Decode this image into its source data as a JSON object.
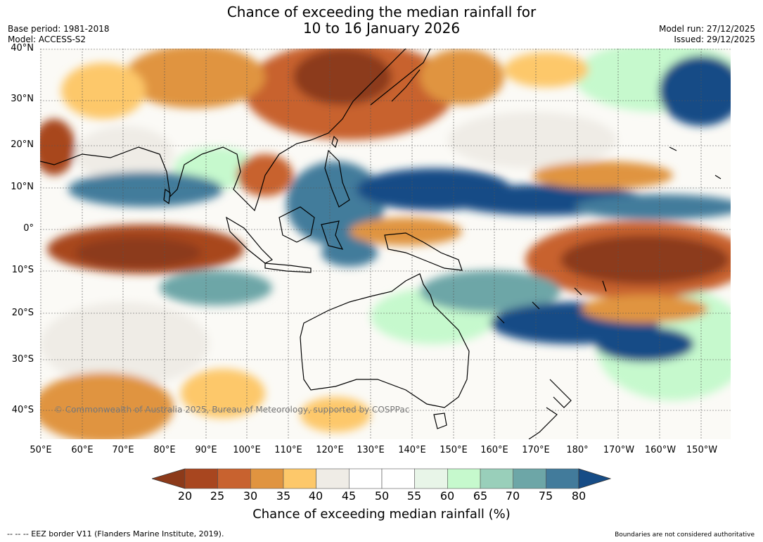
{
  "title": {
    "line1": "Chance of exceeding the median rainfall for",
    "line2": "10 to 16 January 2026"
  },
  "meta": {
    "base_period": "Base period: 1981-2018",
    "model": "Model: ACCESS-S2",
    "model_run": "Model run: 27/12/2025",
    "issued": "Issued: 29/12/2025"
  },
  "latitude_labels": [
    "40°N",
    "30°N",
    "20°N",
    "10°N",
    "0°",
    "10°S",
    "20°S",
    "30°S",
    "40°S"
  ],
  "longitude_labels": [
    "50°E",
    "60°E",
    "70°E",
    "80°E",
    "90°E",
    "100°E",
    "110°E",
    "120°E",
    "130°E",
    "140°E",
    "150°E",
    "160°E",
    "170°E",
    "180°",
    "170°W",
    "160°W",
    "150°W"
  ],
  "copyright": "© Commonwealth of Australia 2025, Bureau of Meteorology, supported by COSPPac",
  "colorbar": {
    "ticks": [
      "20",
      "25",
      "30",
      "35",
      "40",
      "45",
      "50",
      "55",
      "60",
      "65",
      "70",
      "75",
      "80"
    ],
    "colors": [
      "#8c3a1a",
      "#a8461f",
      "#c8622f",
      "#e09440",
      "#fdc86a",
      "#efece6",
      "#ffffff",
      "#ffffff",
      "#e8f5e8",
      "#c6f9cd",
      "#99cfba",
      "#6da6a7",
      "#427b9b",
      "#164c86"
    ],
    "title": "Chance of exceeding median rainfall (%)"
  },
  "footer": {
    "left": "--  --  -- EEZ border V11 (Flanders Marine Institute, 2019).",
    "right": "Boundaries are not considered authoritative"
  }
}
